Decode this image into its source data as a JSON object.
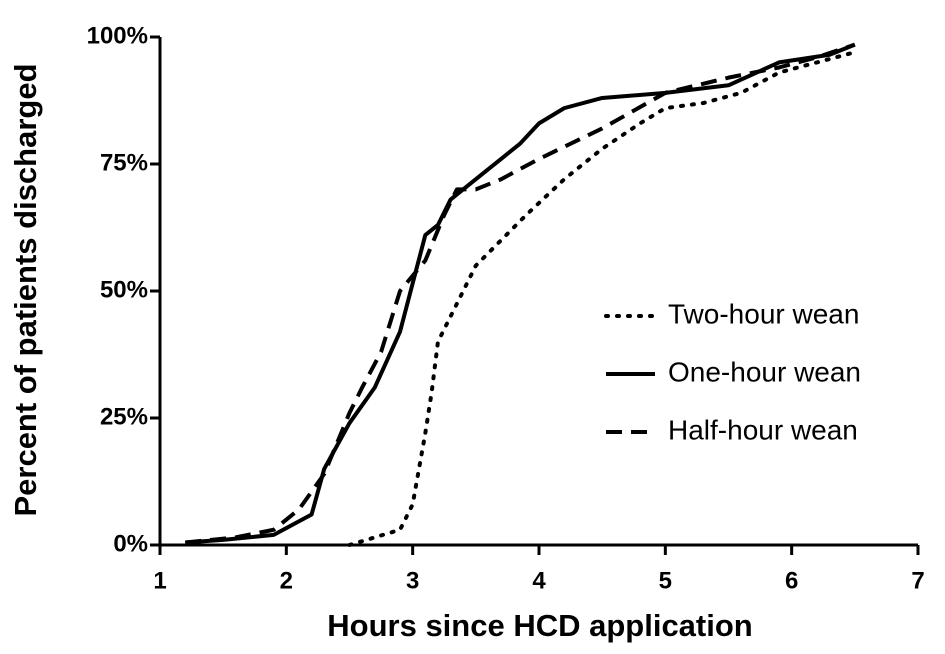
{
  "chart_data": {
    "type": "line",
    "xlabel": "Hours since  HCD application",
    "ylabel": "Percent of patients discharged",
    "xlim": [
      1,
      7
    ],
    "xticks": [
      1,
      2,
      3,
      4,
      5,
      6,
      7
    ],
    "ylim": [
      0,
      100
    ],
    "yticks": [
      {
        "value": 0,
        "label": "0%"
      },
      {
        "value": 25,
        "label": "25%"
      },
      {
        "value": 50,
        "label": "50%"
      },
      {
        "value": 75,
        "label": "75%"
      },
      {
        "value": 100,
        "label": "100%"
      }
    ],
    "legend": "right",
    "series": [
      {
        "name": "Two-hour wean",
        "color": "#000000",
        "dash": "dotted",
        "x": [
          2.5,
          2.7,
          2.9,
          3.0,
          3.05,
          3.1,
          3.15,
          3.2,
          3.3,
          3.5,
          3.7,
          3.9,
          4.2,
          4.5,
          4.8,
          5.0,
          5.3,
          5.6,
          5.9,
          6.2,
          6.5
        ],
        "values": [
          0,
          1.5,
          3,
          8,
          15,
          22,
          30,
          40,
          45,
          55,
          60,
          65,
          72,
          78,
          83,
          86,
          87,
          89,
          93,
          95,
          97
        ]
      },
      {
        "name": "One-hour wean",
        "color": "#000000",
        "dash": "solid",
        "x": [
          1.2,
          1.5,
          1.9,
          2.2,
          2.3,
          2.5,
          2.7,
          2.9,
          3.1,
          3.2,
          3.3,
          3.5,
          3.7,
          3.85,
          4.0,
          4.2,
          4.5,
          5.0,
          5.5,
          5.9,
          6.3,
          6.5
        ],
        "values": [
          0.5,
          1,
          2,
          6,
          15,
          24,
          31,
          42,
          61,
          63,
          68,
          72,
          76,
          79,
          83,
          86,
          88,
          89,
          90.5,
          95,
          96.5,
          98.5
        ]
      },
      {
        "name": "Half-hour wean",
        "color": "#000000",
        "dash": "dashed",
        "x": [
          1.2,
          1.6,
          1.9,
          2.1,
          2.3,
          2.5,
          2.6,
          2.75,
          2.9,
          3.1,
          3.25,
          3.35,
          3.5,
          3.7,
          4.0,
          4.5,
          5.0,
          5.5,
          5.9,
          6.2,
          6.5
        ],
        "values": [
          0.5,
          1.5,
          3,
          7,
          14,
          26,
          31,
          38,
          50,
          56,
          65,
          70,
          70,
          72,
          76,
          82,
          89,
          92,
          94,
          96,
          98.5
        ]
      }
    ]
  }
}
